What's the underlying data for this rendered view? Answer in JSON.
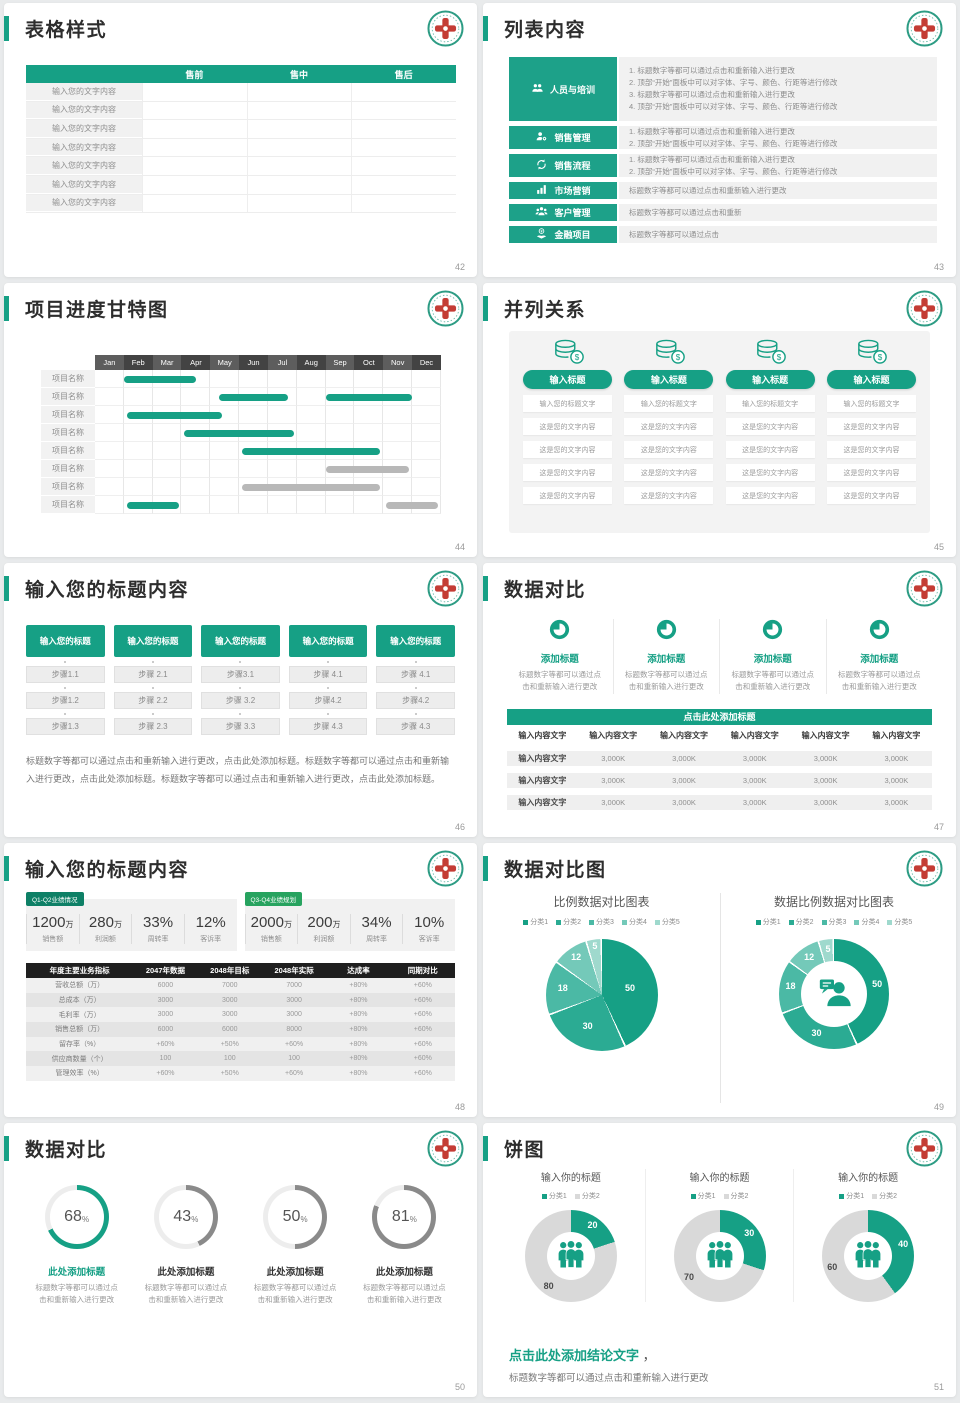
{
  "accent": "#16a085",
  "colors": {
    "gantt_green": "#16a085",
    "gantt_gray": "#b8b8b8",
    "pie_palette": [
      "#16a085",
      "#2bab93",
      "#4bb9a5",
      "#74c9b9",
      "#9fd9cd"
    ],
    "ring_green": "#16a085",
    "ring_gray": "#8a8a8a",
    "ring_track": "#ededed",
    "donut_green": "#16a085",
    "donut_gray": "#d9d9d9",
    "table_header_dark": "#1f1f1f",
    "tag_dark_green": "#0e8066",
    "tag_green": "#27a35f"
  },
  "slides": {
    "s42": {
      "title": "表格样式",
      "page": "42",
      "table": {
        "headers": [
          "",
          "售前",
          "售中",
          "售后"
        ],
        "rows": [
          "输入您的文字内容",
          "输入您的文字内容",
          "输入您的文字内容",
          "输入您的文字内容",
          "输入您的文字内容",
          "输入您的文字内容",
          "输入您的文字内容"
        ]
      }
    },
    "s43": {
      "title": "列表内容",
      "page": "43",
      "items": [
        {
          "icon": "training-people-icon",
          "label": "人员与培训",
          "size": "big",
          "lines": [
            "1.  标题数字等都可以通过点击和重新输入进行更改",
            "2.  顶部“开始”面板中可以对字体、字号、颜色、行距等进行修改",
            "3.  标题数字等都可以通过点击和重新输入进行更改",
            "4.  顶部“开始”面板中可以对字体、字号、颜色、行距等进行修改"
          ]
        },
        {
          "icon": "person-gear-icon",
          "label": "销售管理",
          "size": "two",
          "lines": [
            "1.  标题数字等都可以通过点击和重新输入进行更改",
            "2.  顶部“开始”面板中可以对字体、字号、颜色、行距等进行修改"
          ]
        },
        {
          "icon": "process-cycle-icon",
          "label": "销售流程",
          "size": "two",
          "lines": [
            "1.  标题数字等都可以通过点击和重新输入进行更改",
            "2.  顶部“开始”面板中可以对字体、字号、颜色、行距等进行修改"
          ]
        },
        {
          "icon": "bar-chart-icon",
          "label": "市场营销",
          "size": "one",
          "lines": [
            "标题数字等都可以通过点击和重新输入进行更改"
          ]
        },
        {
          "icon": "customers-icon",
          "label": "客户管理",
          "size": "one",
          "lines": [
            "标题数字等都可以通过点击和重新"
          ]
        },
        {
          "icon": "finance-icon",
          "label": "金融项目",
          "size": "one",
          "lines": [
            "标题数字等都可以通过点击"
          ]
        }
      ]
    },
    "s44": {
      "title": "项目进度甘特图",
      "page": "44",
      "gantt": {
        "type": "gantt",
        "months": [
          "Jan",
          "Feb",
          "Mar",
          "Apr",
          "May",
          "Jun",
          "Jul",
          "Aug",
          "Sep",
          "Oct",
          "Nov",
          "Dec"
        ],
        "row_label": "项目名称",
        "row_count": 8,
        "bars": [
          {
            "row": 0,
            "start": 1.0,
            "end": 3.5,
            "color": "green"
          },
          {
            "row": 1,
            "start": 4.3,
            "end": 6.7,
            "color": "green"
          },
          {
            "row": 1,
            "start": 8.0,
            "end": 11.0,
            "color": "green"
          },
          {
            "row": 2,
            "start": 1.1,
            "end": 4.4,
            "color": "green"
          },
          {
            "row": 3,
            "start": 3.1,
            "end": 6.9,
            "color": "green"
          },
          {
            "row": 4,
            "start": 5.1,
            "end": 9.9,
            "color": "green"
          },
          {
            "row": 5,
            "start": 8.0,
            "end": 10.9,
            "color": "gray"
          },
          {
            "row": 6,
            "start": 5.1,
            "end": 9.9,
            "color": "gray"
          },
          {
            "row": 7,
            "start": 1.1,
            "end": 2.9,
            "color": "green"
          },
          {
            "row": 7,
            "start": 10.1,
            "end": 11.9,
            "color": "gray"
          }
        ]
      }
    },
    "s45": {
      "title": "并列关系",
      "page": "45",
      "columns": [
        {
          "header": "输入标题",
          "rows": [
            "输入您的标题文字",
            "这是您的文字内容",
            "这是您的文字内容",
            "这是您的文字内容",
            "这是您的文字内容"
          ]
        },
        {
          "header": "输入标题",
          "rows": [
            "输入您的标题文字",
            "这是您的文字内容",
            "这是您的文字内容",
            "这是您的文字内容",
            "这是您的文字内容"
          ]
        },
        {
          "header": "输入标题",
          "rows": [
            "输入您的标题文字",
            "这是您的文字内容",
            "这是您的文字内容",
            "这是您的文字内容",
            "这是您的文字内容"
          ]
        },
        {
          "header": "输入标题",
          "rows": [
            "输入您的标题文字",
            "这是您的文字内容",
            "这是您的文字内容",
            "这是您的文字内容",
            "这是您的文字内容"
          ]
        }
      ]
    },
    "s46": {
      "title": "输入您的标题内容",
      "page": "46",
      "columns": [
        {
          "header": "输入您的标题",
          "steps": [
            "步骤1.1",
            "步骤1.2",
            "步骤1.3"
          ]
        },
        {
          "header": "输入您的标题",
          "steps": [
            "步骤 2.1",
            "步骤 2.2",
            "步骤 2.3"
          ]
        },
        {
          "header": "输入您的标题",
          "steps": [
            "步骤3.1",
            "步骤 3.2",
            "步骤 3.3"
          ]
        },
        {
          "header": "输入您的标题",
          "steps": [
            "步骤 4.1",
            "步骤4.2",
            "步骤 4.3"
          ]
        },
        {
          "header": "输入您的标题",
          "steps": [
            "步骤 4.1",
            "步骤4.2",
            "步骤 4.3"
          ]
        }
      ],
      "paragraph": "标题数字等都可以通过点击和重新输入进行更改，点击此处添加标题。标题数字等都可以通过点击和重新输入进行更改，点击此处添加标题。标题数字等都可以通过点击和重新输入进行更改，点击此处添加标题。"
    },
    "s47": {
      "title": "数据对比",
      "page": "47",
      "features": [
        {
          "icon": "pie-chart-icon",
          "title": "添加标题",
          "caption": "标题数字等都可以通过点击和重新输入进行更改"
        },
        {
          "icon": "pie-chart-icon",
          "title": "添加标题",
          "caption": "标题数字等都可以通过点击和重新输入进行更改"
        },
        {
          "icon": "pie-chart-icon",
          "title": "添加标题",
          "caption": "标题数字等都可以通过点击和重新输入进行更改"
        },
        {
          "icon": "pie-chart-icon",
          "title": "添加标题",
          "caption": "标题数字等都可以通过点击和重新输入进行更改"
        }
      ],
      "band": "点击此处添加标题",
      "table": {
        "headers": [
          "输入内容文字",
          "输入内容文字",
          "输入内容文字",
          "输入内容文字",
          "输入内容文字",
          "输入内容文字"
        ],
        "rows": [
          [
            "输入内容文字",
            "3,000K",
            "3,000K",
            "3,000K",
            "3,000K",
            "3,000K"
          ],
          [
            "输入内容文字",
            "3,000K",
            "3,000K",
            "3,000K",
            "3,000K",
            "3,000K"
          ],
          [
            "输入内容文字",
            "3,000K",
            "3,000K",
            "3,000K",
            "3,000K",
            "3,000K"
          ]
        ]
      }
    },
    "s48": {
      "title": "输入您的标题内容",
      "page": "48",
      "panels": [
        {
          "tag": "Q1-Q2业绩情况",
          "tag_color": "#0e8066",
          "stats": [
            {
              "value": "1200",
              "unit": "万",
              "label": "销售额"
            },
            {
              "value": "280",
              "unit": "万",
              "label": "利润额"
            },
            {
              "value": "33%",
              "unit": "",
              "label": "周转率"
            },
            {
              "value": "12%",
              "unit": "",
              "label": "客诉率"
            }
          ]
        },
        {
          "tag": "Q3-Q4业绩规划",
          "tag_color": "#27a35f",
          "stats": [
            {
              "value": "2000",
              "unit": "万",
              "label": "销售额"
            },
            {
              "value": "200",
              "unit": "万",
              "label": "利润额"
            },
            {
              "value": "34%",
              "unit": "",
              "label": "周转率"
            },
            {
              "value": "10%",
              "unit": "",
              "label": "客诉率"
            }
          ]
        }
      ],
      "table": {
        "headers": [
          "年度主要业务指标",
          "2047年数据",
          "2048年目标",
          "2048年实际",
          "达成率",
          "同期对比"
        ],
        "rows": [
          [
            "营收总额（万）",
            "6000",
            "7000",
            "7000",
            "+80%",
            "+60%"
          ],
          [
            "总成本（万）",
            "3000",
            "3000",
            "3000",
            "+80%",
            "+60%"
          ],
          [
            "毛利率（万）",
            "3000",
            "3000",
            "3000",
            "+80%",
            "+60%"
          ],
          [
            "销售总额（万）",
            "6000",
            "6000",
            "8000",
            "+80%",
            "+60%"
          ],
          [
            "留存率（%）",
            "+60%",
            "+50%",
            "+60%",
            "+80%",
            "+60%"
          ],
          [
            "供应商数量（个）",
            "100",
            "100",
            "100",
            "+80%",
            "+60%"
          ],
          [
            "管理效率（%）",
            "+60%",
            "+50%",
            "+60%",
            "+80%",
            "+60%"
          ]
        ]
      }
    },
    "s49": {
      "title": "数据对比图",
      "page": "49",
      "chart_data": [
        {
          "type": "pie",
          "title": "比例数据对比图表",
          "legend": [
            "分类1",
            "分类2",
            "分类3",
            "分类4",
            "分类5"
          ],
          "values": [
            50,
            30,
            18,
            12,
            5
          ]
        },
        {
          "type": "donut",
          "title": "数据比例数据对比图表",
          "legend": [
            "分类1",
            "分类2",
            "分类3",
            "分类4",
            "分类5"
          ],
          "values": [
            50,
            30,
            18,
            12,
            5
          ],
          "center_icon": "person-speech-icon"
        }
      ]
    },
    "s50": {
      "title": "数据对比",
      "page": "50",
      "rings": [
        {
          "percent": 68,
          "color": "green",
          "title": "此处添加标题",
          "caption": "标题数字等都可以通过点击和重新输入进行更改"
        },
        {
          "percent": 43,
          "color": "gray",
          "title": "此处添加标题",
          "caption": "标题数字等都可以通过点击和重新输入进行更改"
        },
        {
          "percent": 50,
          "color": "gray",
          "title": "此处添加标题",
          "caption": "标题数字等都可以通过点击和重新输入进行更改"
        },
        {
          "percent": 81,
          "color": "gray",
          "title": "此处添加标题",
          "caption": "标题数字等都可以通过点击和重新输入进行更改"
        }
      ]
    },
    "s51": {
      "title": "饼图",
      "page": "51",
      "chart_data": [
        {
          "type": "donut",
          "title": "输入你的标题",
          "legend": [
            "分类1",
            "分类2"
          ],
          "green": 20,
          "gray": 80,
          "center_icon": "people-group-icon"
        },
        {
          "type": "donut",
          "title": "输入你的标题",
          "legend": [
            "分类1",
            "分类2"
          ],
          "green": 30,
          "gray": 70,
          "center_icon": "people-group-icon"
        },
        {
          "type": "donut",
          "title": "输入你的标题",
          "legend": [
            "分类1",
            "分类2"
          ],
          "green": 40,
          "gray": 60,
          "center_icon": "people-group-icon"
        }
      ],
      "conclusion_title": "点击此处添加结论文字",
      "conclusion_comma": " ，",
      "conclusion_text": "标题数字等都可以通过点击和重新输入进行更改"
    }
  }
}
